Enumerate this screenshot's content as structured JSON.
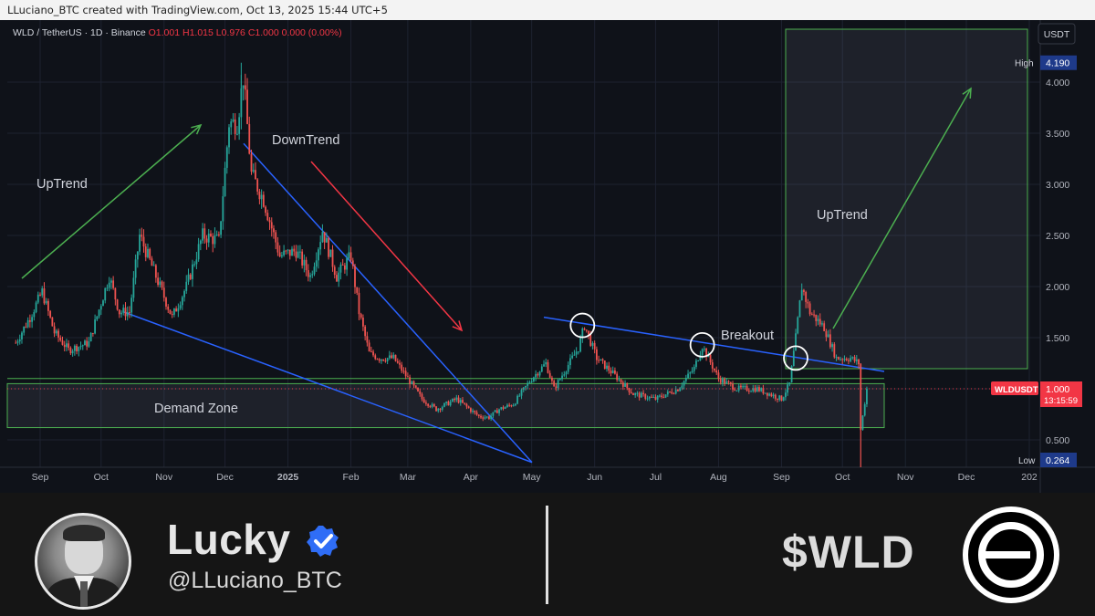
{
  "header": {
    "text": "LLuciano_BTC created with TradingView.com, Oct 13, 2025 15:44 UTC+5"
  },
  "chart_data": {
    "type": "candlestick",
    "symbol_line": {
      "symbol": "WLD / TetherUS · 1D · Binance",
      "o": "O1.001",
      "h": "H1.015",
      "l": "L0.976",
      "c": "C1.000",
      "chg": "0.000 (0.00%)"
    },
    "currency_label": "USDT",
    "y_ticks": [
      "4.000",
      "3.500",
      "3.000",
      "2.500",
      "2.000",
      "1.500",
      "1.000",
      "0.500"
    ],
    "y_tick_values": [
      4.0,
      3.5,
      3.0,
      2.5,
      2.0,
      1.5,
      1.0,
      0.5
    ],
    "x_ticks": [
      "Sep",
      "Oct",
      "Nov",
      "Dec",
      "2025",
      "Feb",
      "Mar",
      "Apr",
      "May",
      "Jun",
      "Jul",
      "Aug",
      "Sep",
      "Oct",
      "Nov",
      "Dec",
      "202"
    ],
    "x_tick_dates": [
      "2024-09-01",
      "2024-10-01",
      "2024-11-01",
      "2024-12-01",
      "2025-01-01",
      "2025-02-01",
      "2025-03-01",
      "2025-04-01",
      "2025-05-01",
      "2025-06-01",
      "2025-07-01",
      "2025-08-01",
      "2025-09-01",
      "2025-10-01",
      "2025-11-01",
      "2025-12-01",
      "2026-01-01"
    ],
    "high_label": "High",
    "high_value": "4.190",
    "low_label": "Low",
    "low_value": "0.264",
    "current_label": "WLDUSDT",
    "current_value": "1.000",
    "countdown": "13:15:59",
    "price_path": [
      {
        "d": "2024-08-20",
        "p": 1.45
      },
      {
        "d": "2024-08-27",
        "p": 1.7
      },
      {
        "d": "2024-09-02",
        "p": 1.95
      },
      {
        "d": "2024-09-08",
        "p": 1.55
      },
      {
        "d": "2024-09-15",
        "p": 1.38
      },
      {
        "d": "2024-09-25",
        "p": 1.45
      },
      {
        "d": "2024-10-05",
        "p": 2.1
      },
      {
        "d": "2024-10-10",
        "p": 1.75
      },
      {
        "d": "2024-10-15",
        "p": 1.75
      },
      {
        "d": "2024-10-20",
        "p": 2.5
      },
      {
        "d": "2024-10-28",
        "p": 2.1
      },
      {
        "d": "2024-11-05",
        "p": 1.7
      },
      {
        "d": "2024-11-12",
        "p": 2.0
      },
      {
        "d": "2024-11-20",
        "p": 2.5
      },
      {
        "d": "2024-11-28",
        "p": 2.45
      },
      {
        "d": "2024-12-03",
        "p": 3.6
      },
      {
        "d": "2024-12-07",
        "p": 3.6
      },
      {
        "d": "2024-12-10",
        "p": 4.05
      },
      {
        "d": "2024-12-14",
        "p": 3.1
      },
      {
        "d": "2024-12-20",
        "p": 2.85
      },
      {
        "d": "2024-12-28",
        "p": 2.3
      },
      {
        "d": "2025-01-05",
        "p": 2.35
      },
      {
        "d": "2025-01-12",
        "p": 2.1
      },
      {
        "d": "2025-01-18",
        "p": 2.55
      },
      {
        "d": "2025-01-25",
        "p": 2.1
      },
      {
        "d": "2025-02-01",
        "p": 2.3
      },
      {
        "d": "2025-02-05",
        "p": 1.75
      },
      {
        "d": "2025-02-10",
        "p": 1.35
      },
      {
        "d": "2025-02-15",
        "p": 1.3
      },
      {
        "d": "2025-02-22",
        "p": 1.3
      },
      {
        "d": "2025-03-01",
        "p": 1.1
      },
      {
        "d": "2025-03-08",
        "p": 0.9
      },
      {
        "d": "2025-03-15",
        "p": 0.8
      },
      {
        "d": "2025-03-25",
        "p": 0.9
      },
      {
        "d": "2025-04-05",
        "p": 0.73
      },
      {
        "d": "2025-04-10",
        "p": 0.72
      },
      {
        "d": "2025-04-15",
        "p": 0.8
      },
      {
        "d": "2025-04-22",
        "p": 0.85
      },
      {
        "d": "2025-05-01",
        "p": 1.1
      },
      {
        "d": "2025-05-08",
        "p": 1.25
      },
      {
        "d": "2025-05-12",
        "p": 1.0
      },
      {
        "d": "2025-05-18",
        "p": 1.2
      },
      {
        "d": "2025-05-24",
        "p": 1.4
      },
      {
        "d": "2025-05-27",
        "p": 1.62
      },
      {
        "d": "2025-06-02",
        "p": 1.3
      },
      {
        "d": "2025-06-10",
        "p": 1.15
      },
      {
        "d": "2025-06-20",
        "p": 0.95
      },
      {
        "d": "2025-07-01",
        "p": 0.9
      },
      {
        "d": "2025-07-12",
        "p": 1.0
      },
      {
        "d": "2025-07-20",
        "p": 1.2
      },
      {
        "d": "2025-07-24",
        "p": 1.42
      },
      {
        "d": "2025-08-01",
        "p": 1.1
      },
      {
        "d": "2025-08-10",
        "p": 1.0
      },
      {
        "d": "2025-08-20",
        "p": 1.0
      },
      {
        "d": "2025-09-01",
        "p": 0.9
      },
      {
        "d": "2025-09-05",
        "p": 1.05
      },
      {
        "d": "2025-09-08",
        "p": 1.5
      },
      {
        "d": "2025-09-11",
        "p": 2.0
      },
      {
        "d": "2025-09-15",
        "p": 1.75
      },
      {
        "d": "2025-09-22",
        "p": 1.6
      },
      {
        "d": "2025-09-28",
        "p": 1.3
      },
      {
        "d": "2025-10-05",
        "p": 1.3
      },
      {
        "d": "2025-10-09",
        "p": 1.25
      },
      {
        "d": "2025-10-10",
        "p": 0.6
      },
      {
        "d": "2025-10-13",
        "p": 1.0
      }
    ],
    "annotations": {
      "uptrend_left": "UpTrend",
      "downtrend": "DownTrend",
      "breakout": "Breakout",
      "uptrend_right": "UpTrend",
      "demand_zone": "Demand Zone"
    },
    "colors": {
      "up": "#26a69a",
      "down": "#ef5350",
      "trendline": "#2962ff",
      "zone": "#4caf50",
      "arrow_up": "#4caf50",
      "arrow_down": "#f23645",
      "background": "#0f1219"
    }
  },
  "footer": {
    "name": "Lucky",
    "handle": "@LLuciano_BTC",
    "ticker": "$WLD",
    "badge_icon": "verified-badge-icon",
    "logo_icon": "worldcoin-logo-icon"
  }
}
